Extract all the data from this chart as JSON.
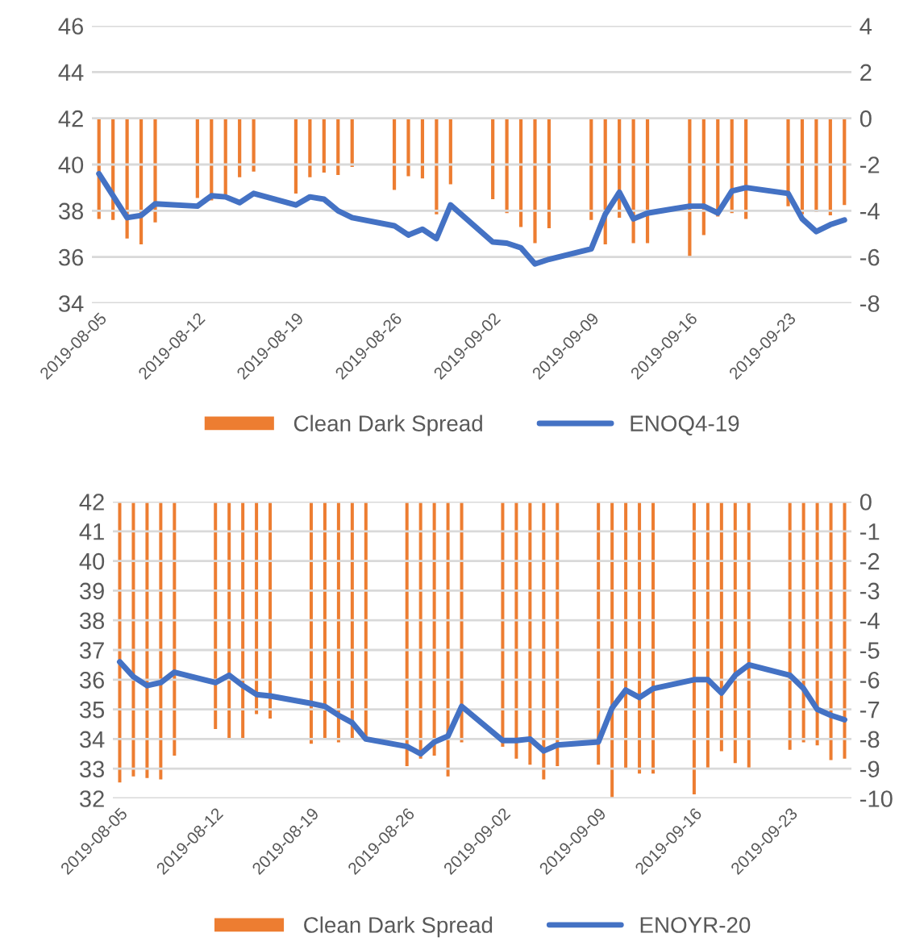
{
  "chart_data": [
    {
      "type": "bar",
      "x": [
        "2019-08-05",
        "2019-08-06",
        "2019-08-07",
        "2019-08-08",
        "2019-08-09",
        "2019-08-12",
        "2019-08-13",
        "2019-08-14",
        "2019-08-15",
        "2019-08-16",
        "2019-08-19",
        "2019-08-20",
        "2019-08-21",
        "2019-08-22",
        "2019-08-23",
        "2019-08-26",
        "2019-08-27",
        "2019-08-28",
        "2019-08-29",
        "2019-08-30",
        "2019-09-02",
        "2019-09-03",
        "2019-09-04",
        "2019-09-05",
        "2019-09-06",
        "2019-09-09",
        "2019-09-10",
        "2019-09-11",
        "2019-09-12",
        "2019-09-13",
        "2019-09-16",
        "2019-09-17",
        "2019-09-18",
        "2019-09-19",
        "2019-09-20",
        "2019-09-23",
        "2019-09-24",
        "2019-09-25",
        "2019-09-26",
        "2019-09-27"
      ],
      "series": [
        {
          "name": "Clean Dark Spread",
          "axis": "y2",
          "color": "#ed7d31",
          "values": [
            -4.4,
            -4.45,
            -5.25,
            -5.5,
            -4.55,
            -3.5,
            -3.6,
            -3.35,
            -2.6,
            -2.35,
            -3.3,
            -2.6,
            -2.4,
            -2.5,
            -2.15,
            -3.15,
            -2.55,
            -2.65,
            -4.2,
            -2.9,
            -3.55,
            -4.15,
            -4.75,
            -5.45,
            -4.8,
            -4.45,
            -5.5,
            -4.35,
            -5.45,
            -5.45,
            -6.05,
            -5.1,
            -4.3,
            -4.15,
            -4.4,
            -3.85,
            -4.2,
            -4.1,
            -4.25,
            -3.8
          ]
        },
        {
          "name": "ENOQ4-19",
          "type": "line",
          "color": "#4472c4",
          "values": [
            39.6,
            38.65,
            37.7,
            37.8,
            38.3,
            38.2,
            38.65,
            38.6,
            38.35,
            38.75,
            38.25,
            38.6,
            38.5,
            38.0,
            37.7,
            37.35,
            36.95,
            37.2,
            36.8,
            38.25,
            36.65,
            36.6,
            36.4,
            35.7,
            35.9,
            36.35,
            37.85,
            38.8,
            37.65,
            37.9,
            38.2,
            38.2,
            37.9,
            38.85,
            39.0,
            38.75,
            37.65,
            37.1,
            37.4,
            37.6
          ]
        }
      ],
      "xlim": [
        "2019-08-04T12:00",
        "2019-09-27T12:00"
      ],
      "xticks": [
        "2019-08-05",
        "2019-08-12",
        "2019-08-19",
        "2019-08-26",
        "2019-09-02",
        "2019-09-09",
        "2019-09-16",
        "2019-09-23"
      ],
      "ylim": [
        34,
        46
      ],
      "yticks": [
        34,
        36,
        38,
        40,
        42,
        44,
        46
      ],
      "y2lim": [
        -8,
        4
      ],
      "y2ticks": [
        -8,
        -6,
        -4,
        -2,
        0,
        2,
        4
      ],
      "grid": "y",
      "legend": "bottom"
    },
    {
      "type": "bar",
      "x": [
        "2019-08-05",
        "2019-08-06",
        "2019-08-07",
        "2019-08-08",
        "2019-08-09",
        "2019-08-12",
        "2019-08-13",
        "2019-08-14",
        "2019-08-15",
        "2019-08-16",
        "2019-08-19",
        "2019-08-20",
        "2019-08-21",
        "2019-08-22",
        "2019-08-23",
        "2019-08-26",
        "2019-08-27",
        "2019-08-28",
        "2019-08-29",
        "2019-08-30",
        "2019-09-02",
        "2019-09-03",
        "2019-09-04",
        "2019-09-05",
        "2019-09-06",
        "2019-09-09",
        "2019-09-10",
        "2019-09-11",
        "2019-09-12",
        "2019-09-13",
        "2019-09-16",
        "2019-09-17",
        "2019-09-18",
        "2019-09-19",
        "2019-09-20",
        "2019-09-23",
        "2019-09-24",
        "2019-09-25",
        "2019-09-26",
        "2019-09-27"
      ],
      "series": [
        {
          "name": "Clean Dark Spread",
          "axis": "y2",
          "color": "#ed7d31",
          "values": [
            -9.5,
            -9.3,
            -9.35,
            -9.4,
            -8.6,
            -7.7,
            -8.05,
            -8.0,
            -7.2,
            -7.35,
            -8.2,
            -8.05,
            -8.15,
            -8.05,
            -8.0,
            -8.95,
            -8.7,
            -8.6,
            -9.3,
            -8.15,
            -8.3,
            -8.7,
            -8.9,
            -9.4,
            -8.95,
            -8.9,
            -10.0,
            -9.05,
            -9.2,
            -9.2,
            -9.9,
            -9.0,
            -8.45,
            -8.85,
            -9.0,
            -8.4,
            -8.15,
            -8.25,
            -8.75,
            -8.7
          ]
        },
        {
          "name": "ENOYR-20",
          "type": "line",
          "color": "#4472c4",
          "values": [
            36.6,
            36.1,
            35.8,
            35.9,
            36.25,
            35.9,
            36.15,
            35.8,
            35.5,
            35.45,
            35.2,
            35.1,
            34.8,
            34.55,
            34.0,
            33.75,
            33.5,
            33.9,
            34.1,
            35.1,
            33.95,
            33.95,
            34.0,
            33.6,
            33.8,
            33.9,
            35.05,
            35.65,
            35.4,
            35.7,
            36.0,
            36.0,
            35.55,
            36.15,
            36.5,
            36.15,
            35.7,
            35.0,
            34.8,
            34.65
          ]
        }
      ],
      "xlim": [
        "2019-08-04T12:00",
        "2019-09-27T12:00"
      ],
      "xticks": [
        "2019-08-05",
        "2019-08-12",
        "2019-08-19",
        "2019-08-26",
        "2019-09-02",
        "2019-09-09",
        "2019-09-16",
        "2019-09-23"
      ],
      "ylim": [
        32,
        42
      ],
      "yticks": [
        32,
        33,
        34,
        35,
        36,
        37,
        38,
        39,
        40,
        41,
        42
      ],
      "y2lim": [
        -10,
        0
      ],
      "y2ticks": [
        -10,
        -9,
        -8,
        -7,
        -6,
        -5,
        -4,
        -3,
        -2,
        -1,
        0
      ],
      "grid": "y",
      "legend": "bottom"
    }
  ]
}
